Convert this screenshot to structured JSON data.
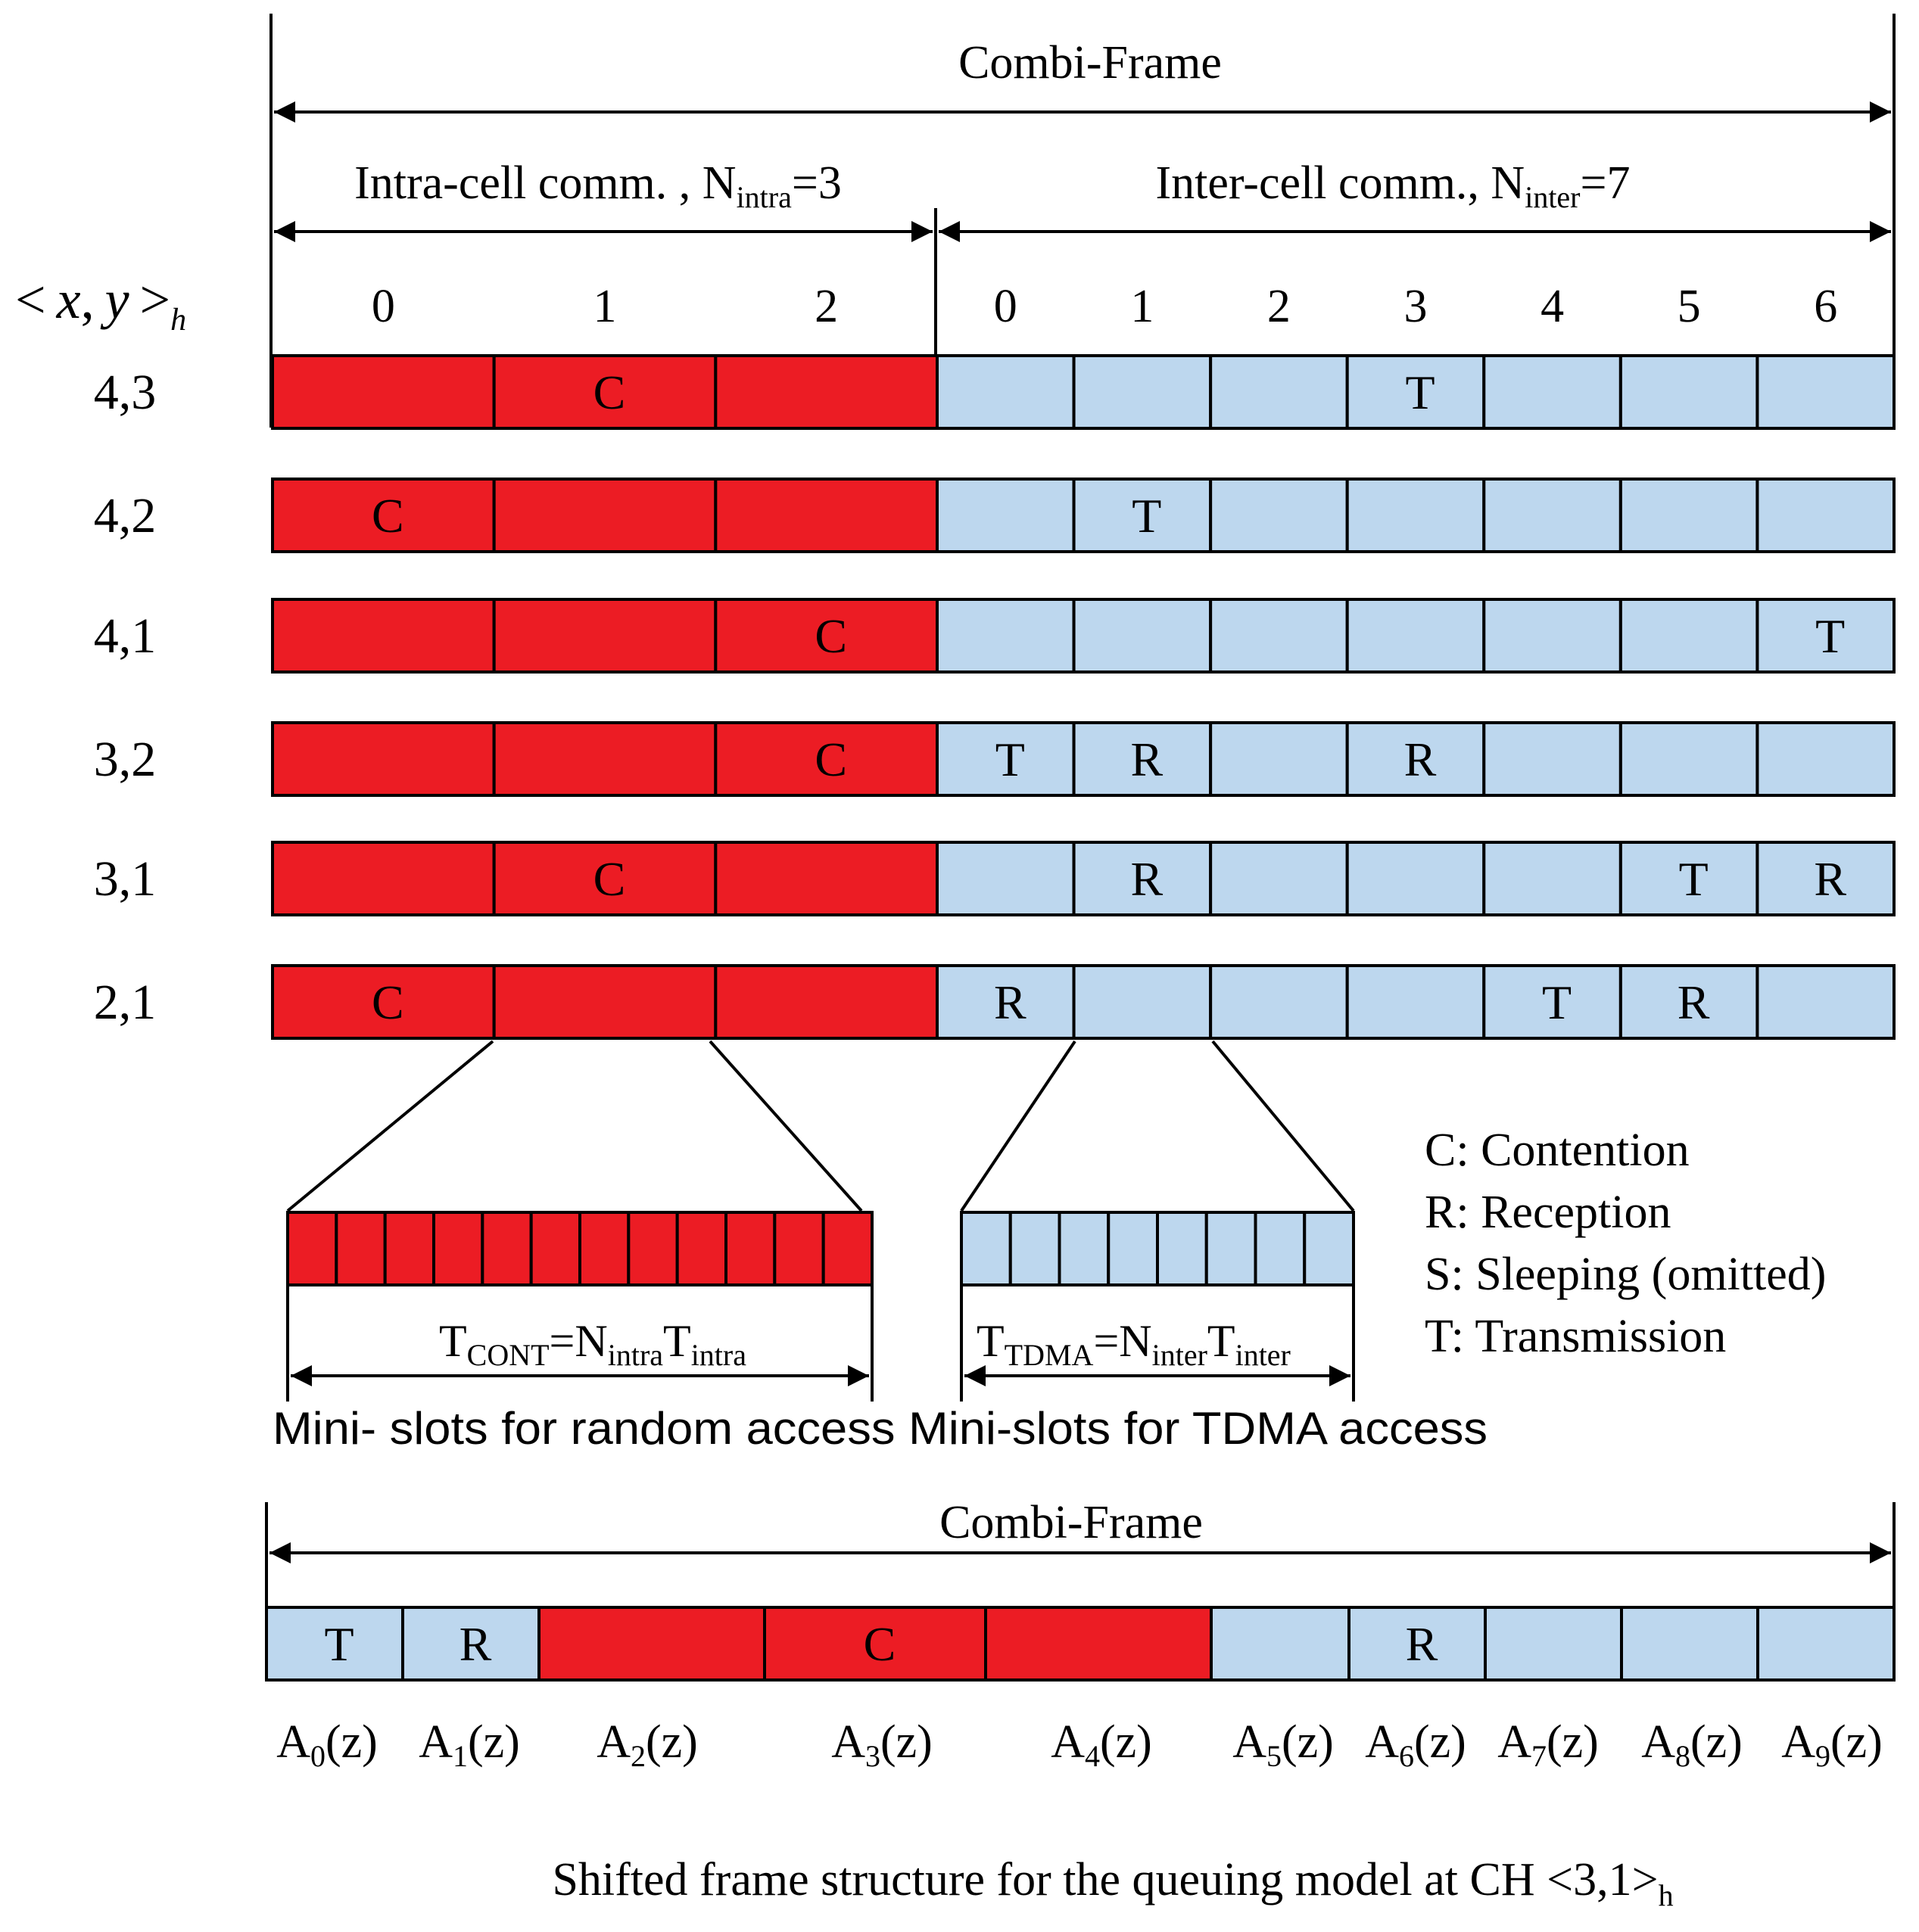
{
  "colors": {
    "intra": "#ec1c24",
    "inter": "#bdd7ee",
    "line": "#000000"
  },
  "top": {
    "frame_title": "Combi-Frame",
    "intra_label": {
      "text": "Intra-cell comm. , N",
      "sub": "intra",
      "tail": "=3"
    },
    "inter_label": {
      "text": "Inter-cell comm., N",
      "sub": "inter",
      "tail": "=7"
    },
    "coord_header": {
      "lt": "<",
      "x": "x",
      "comma": ",",
      "y": "y",
      "gt": ">",
      "sub": "h"
    },
    "intra_slots": [
      "0",
      "1",
      "2"
    ],
    "inter_slots": [
      "0",
      "1",
      "2",
      "3",
      "4",
      "5",
      "6"
    ],
    "rows": [
      {
        "coord": "4,3",
        "slots": [
          "",
          "C",
          "",
          "",
          "",
          "",
          "T",
          "",
          "",
          ""
        ]
      },
      {
        "coord": "4,2",
        "slots": [
          "C",
          "",
          "",
          "",
          "T",
          "",
          "",
          "",
          "",
          ""
        ]
      },
      {
        "coord": "4,1",
        "slots": [
          "",
          "",
          "C",
          "",
          "",
          "",
          "",
          "",
          "",
          "T"
        ]
      },
      {
        "coord": "3,2",
        "slots": [
          "",
          "",
          "C",
          "T",
          "R",
          "",
          "R",
          "",
          "",
          ""
        ]
      },
      {
        "coord": "3,1",
        "slots": [
          "",
          "C",
          "",
          "",
          "R",
          "",
          "",
          "",
          "T",
          "R"
        ]
      },
      {
        "coord": "2,1",
        "slots": [
          "C",
          "",
          "",
          "R",
          "",
          "",
          "",
          "T",
          "R",
          ""
        ]
      }
    ]
  },
  "mini": {
    "cont_formula": {
      "T": "T",
      "sub1": "CONT",
      "eq": "=N",
      "sub2": "intra",
      "T2": "T",
      "sub3": "intra"
    },
    "tdma_formula": {
      "T": "T",
      "sub1": "TDMA",
      "eq": "=N",
      "sub2": "inter",
      "T2": "T",
      "sub3": "inter"
    },
    "caption": "Mini- slots for random access Mini-slots for TDMA access",
    "cont_count": 12,
    "tdma_count": 8
  },
  "legend": [
    "C: Contention",
    "R: Reception",
    "S: Sleeping (omitted)",
    "T: Transmission"
  ],
  "bottom": {
    "frame_title": "Combi-Frame",
    "slots": [
      "T",
      "R",
      "",
      "C",
      "",
      "",
      "R",
      "",
      "",
      ""
    ],
    "a_labels": [
      {
        "A": "A",
        "sub": "0",
        "z": "(z)"
      },
      {
        "A": "A",
        "sub": "1",
        "z": "(z)"
      },
      {
        "A": "A",
        "sub": "2",
        "z": "(z)"
      },
      {
        "A": "A",
        "sub": "3",
        "z": "(z)"
      },
      {
        "A": "A",
        "sub": "4",
        "z": "(z)"
      },
      {
        "A": "A",
        "sub": "5",
        "z": "(z)"
      },
      {
        "A": "A",
        "sub": "6",
        "z": "(z)"
      },
      {
        "A": "A",
        "sub": "7",
        "z": "(z)"
      },
      {
        "A": "A",
        "sub": "8",
        "z": "(z)"
      },
      {
        "A": "A",
        "sub": "9",
        "z": "(z)"
      }
    ],
    "caption": {
      "text": "Shifted frame structure for the queuing model at CH <3,1>",
      "sub": "h"
    }
  }
}
